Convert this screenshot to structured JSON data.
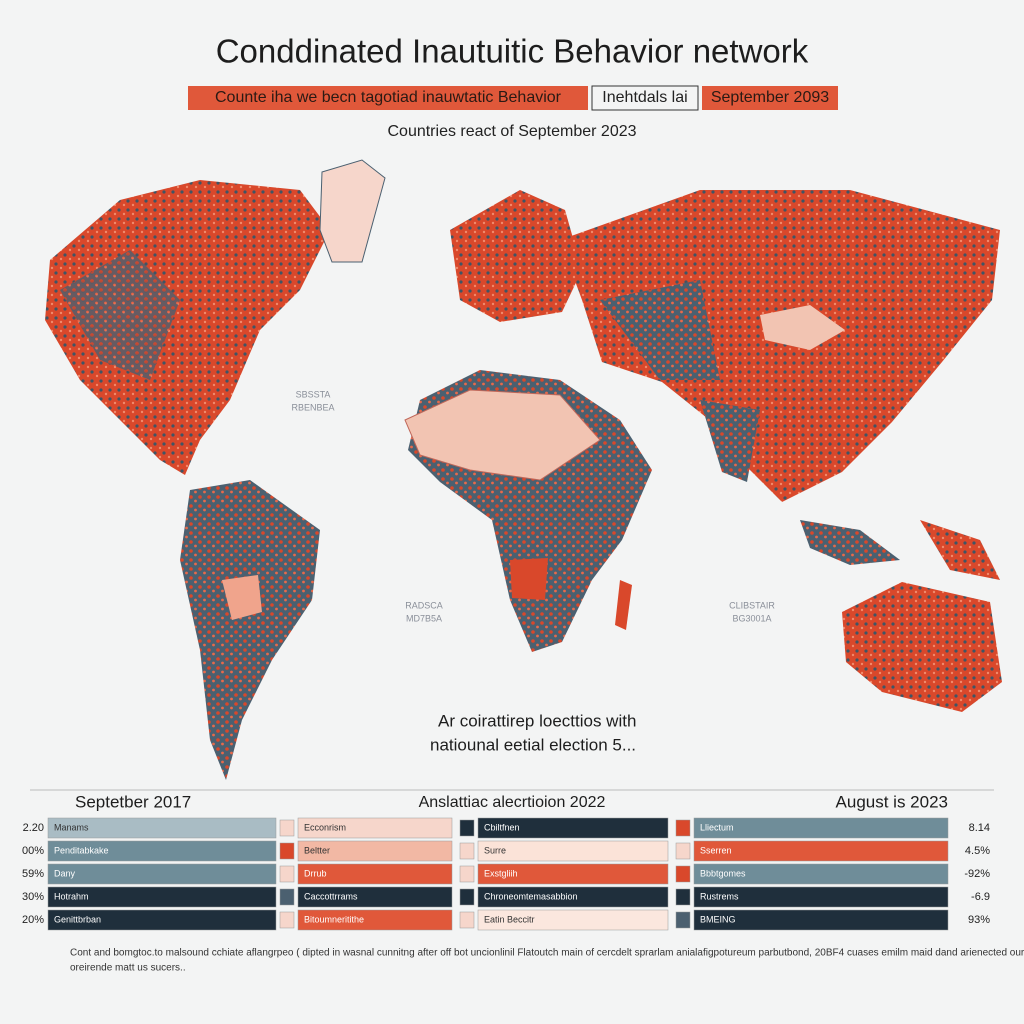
{
  "header": {
    "title": "Conddinated Inautuitic Behavior network",
    "banner": [
      "Counte iha we becn tagotiad inauwtatic Behavior",
      "Inehtdals lai",
      "September 2093"
    ],
    "caption": "Countries react of September 2023"
  },
  "map": {
    "labels": [
      [
        "SBSSTA",
        "RBENBEA"
      ],
      [
        "RADSCA",
        "MD7B5A"
      ],
      [
        "CLIBSTAIR",
        "BG3001A"
      ]
    ]
  },
  "annotation": [
    "Ar coirattirep loecttios with",
    "natiounal eetial election 5..."
  ],
  "table": {
    "headers": [
      "Septetber 2017",
      "Anslattiac alecrtioion 2022",
      "August is 2023"
    ],
    "left_values": [
      "2.20",
      "00%",
      "59%",
      "30%",
      "20%"
    ],
    "right_values": [
      "8.14",
      "4.5%",
      "-92%",
      "-6.9",
      "93%"
    ],
    "columns": [
      [
        "Manams",
        "Penditabkake",
        "Dany",
        "Hotrahm",
        "Genittbrban"
      ],
      [
        "Ecconrism",
        "Beltter",
        "Drrub",
        "Caccottrrams",
        "Bitoumneritithe"
      ],
      [
        "Cbiltfnen",
        "Surre",
        "Exstgliih",
        "Chroneomtemasabbion",
        "Eatin Beccitr"
      ],
      [
        "Lliectum",
        "Sserren",
        "Bbbtgomes",
        "Rustrems",
        "BMEING"
      ]
    ]
  },
  "footer": [
    "Cont and bomgtoc.to malsound cchiate aflangrpeo ( dipted in wasnal cunnitng after off bot uncionlinil Flatoutch main of cercdelt sprarlam anialafigpotureum parbutbond, 20BF4 cuases emilm maid dand arienected our coted..",
    "oreirende matt us sucers.."
  ]
}
